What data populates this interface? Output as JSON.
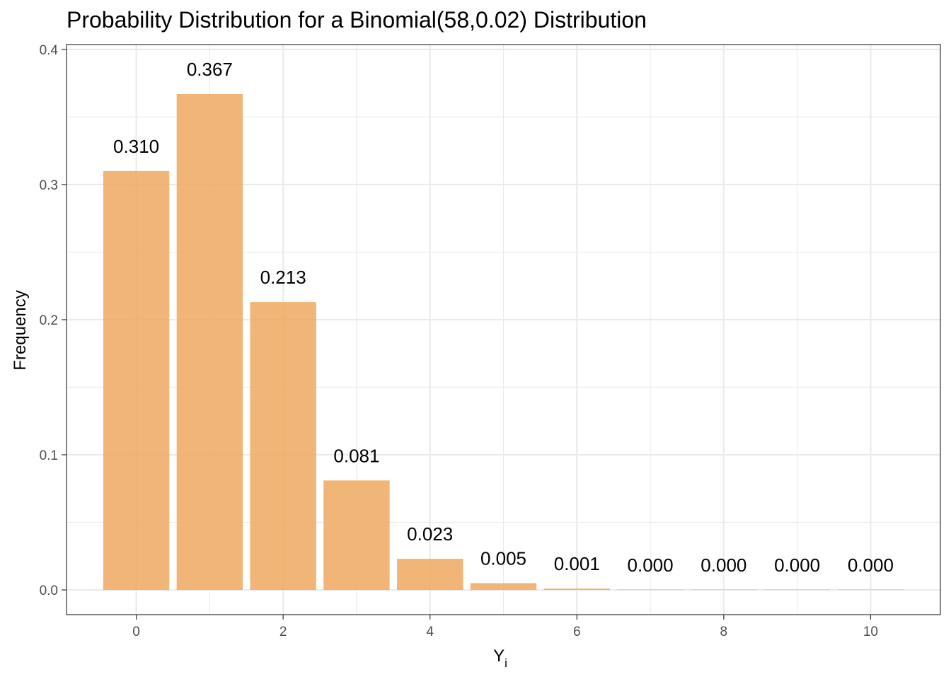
{
  "chart_data": {
    "type": "bar",
    "title": "Probability Distribution for a Binomial(58,0.02) Distribution",
    "xlabel": "Y",
    "xlabel_subscript": "i",
    "ylabel": "Frequency",
    "x": [
      0,
      1,
      2,
      3,
      4,
      5,
      6,
      7,
      8,
      9,
      10
    ],
    "values": [
      0.31,
      0.367,
      0.213,
      0.081,
      0.023,
      0.005,
      0.001,
      0.0,
      0.0,
      0.0,
      0.0
    ],
    "data_labels": [
      "0.310",
      "0.367",
      "0.213",
      "0.081",
      "0.023",
      "0.005",
      "0.001",
      "0.000",
      "0.000",
      "0.000",
      "0.000"
    ],
    "xlim": [
      -0.95,
      10.95
    ],
    "ylim": [
      -0.0183,
      0.4036
    ],
    "x_ticks": [
      0,
      2,
      4,
      6,
      8,
      10
    ],
    "x_tick_labels": [
      "0",
      "2",
      "4",
      "6",
      "8",
      "10"
    ],
    "y_ticks": [
      0.0,
      0.1,
      0.2,
      0.3,
      0.4
    ],
    "y_tick_labels": [
      "0.0",
      "0.1",
      "0.2",
      "0.3",
      "0.4"
    ],
    "grid": true,
    "legend": "none",
    "colors": {
      "bar": "#eea95f",
      "grid": "#ebebeb",
      "panel_border": "#333333"
    }
  }
}
